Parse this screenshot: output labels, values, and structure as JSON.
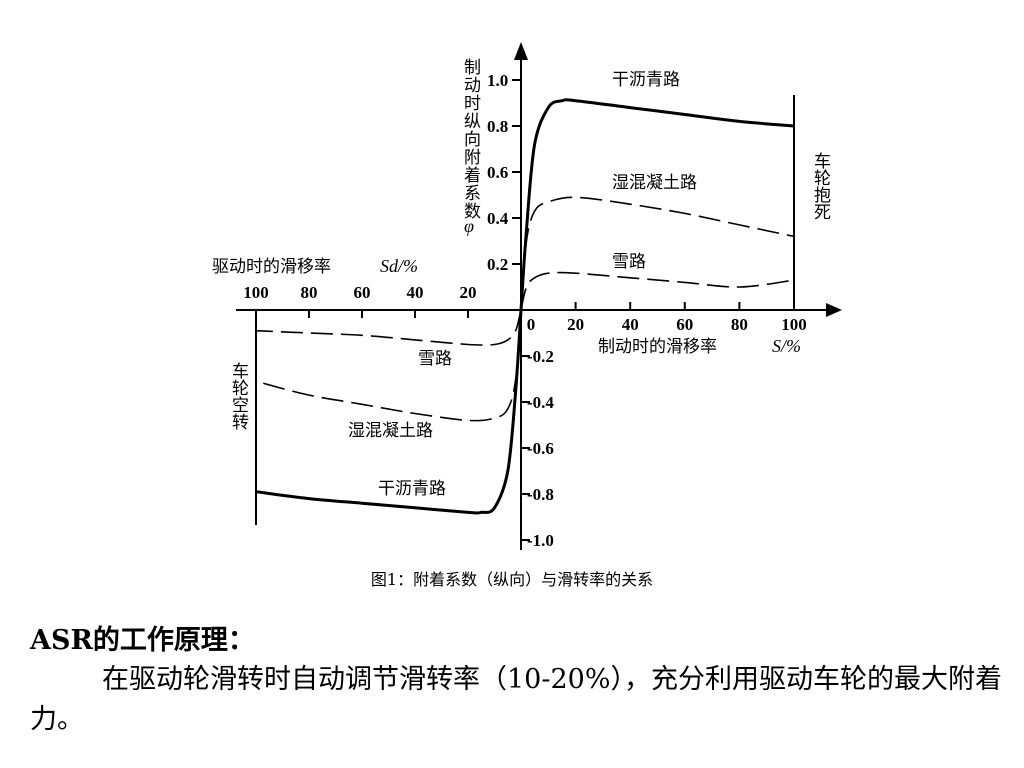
{
  "chart_data": {
    "type": "line",
    "title": "",
    "y_axis": {
      "label": "制动时纵向附着系数",
      "symbol": "φ",
      "ticks_positive": [
        "1.0",
        "0.8",
        "0.6",
        "0.4",
        "0.2"
      ],
      "ticks_negative": [
        "0.2",
        "0.4",
        "0.6",
        "0.8",
        "1.0"
      ],
      "range": [
        -1.0,
        1.0
      ]
    },
    "x_axis_braking": {
      "label": "制动时的滑移率",
      "symbol": "S/%",
      "ticks": [
        "0",
        "20",
        "40",
        "60",
        "80",
        "100"
      ],
      "range": [
        0,
        100
      ]
    },
    "x_axis_driving": {
      "label": "驱动时的滑移率",
      "symbol": "Sd/%",
      "ticks": [
        "100",
        "80",
        "60",
        "40",
        "20"
      ],
      "range": [
        0,
        100
      ]
    },
    "boundary_labels": {
      "braking_end": "车轮抱死",
      "driving_end": "车轮空转"
    },
    "series": [
      {
        "name": "干沥青路",
        "style": "solid",
        "braking": [
          [
            0,
            0.0
          ],
          [
            2,
            0.35
          ],
          [
            5,
            0.72
          ],
          [
            10,
            0.88
          ],
          [
            15,
            0.91
          ],
          [
            20,
            0.91
          ],
          [
            40,
            0.88
          ],
          [
            60,
            0.85
          ],
          [
            80,
            0.82
          ],
          [
            100,
            0.8
          ]
        ],
        "driving": [
          [
            0,
            0.0
          ],
          [
            2,
            -0.35
          ],
          [
            5,
            -0.7
          ],
          [
            10,
            -0.86
          ],
          [
            15,
            -0.88
          ],
          [
            20,
            -0.88
          ],
          [
            40,
            -0.86
          ],
          [
            60,
            -0.84
          ],
          [
            80,
            -0.82
          ],
          [
            100,
            -0.79
          ]
        ]
      },
      {
        "name": "湿混凝土路",
        "style": "dashed",
        "braking": [
          [
            0,
            0.0
          ],
          [
            2,
            0.3
          ],
          [
            5,
            0.43
          ],
          [
            10,
            0.47
          ],
          [
            20,
            0.49
          ],
          [
            40,
            0.46
          ],
          [
            60,
            0.42
          ],
          [
            80,
            0.37
          ],
          [
            100,
            0.32
          ]
        ],
        "driving": [
          [
            0,
            0.0
          ],
          [
            2,
            -0.3
          ],
          [
            5,
            -0.43
          ],
          [
            10,
            -0.47
          ],
          [
            20,
            -0.48
          ],
          [
            40,
            -0.45
          ],
          [
            60,
            -0.41
          ],
          [
            80,
            -0.37
          ],
          [
            100,
            -0.31
          ]
        ]
      },
      {
        "name": "雪路",
        "style": "dashed",
        "braking": [
          [
            0,
            0.0
          ],
          [
            2,
            0.1
          ],
          [
            5,
            0.14
          ],
          [
            10,
            0.16
          ],
          [
            20,
            0.16
          ],
          [
            40,
            0.14
          ],
          [
            60,
            0.12
          ],
          [
            80,
            0.1
          ],
          [
            100,
            0.13
          ]
        ],
        "driving": [
          [
            0,
            0.0
          ],
          [
            2,
            -0.09
          ],
          [
            5,
            -0.13
          ],
          [
            10,
            -0.15
          ],
          [
            20,
            -0.15
          ],
          [
            40,
            -0.13
          ],
          [
            60,
            -0.11
          ],
          [
            80,
            -0.1
          ],
          [
            100,
            -0.09
          ]
        ]
      }
    ]
  },
  "caption": "图1：附着系数（纵向）与滑转率的关系",
  "section_title": "ASR的工作原理：",
  "body_text": "在驱动轮滑转时自动调节滑转率（10-20%），充分利用驱动车轮的最大附着力。"
}
